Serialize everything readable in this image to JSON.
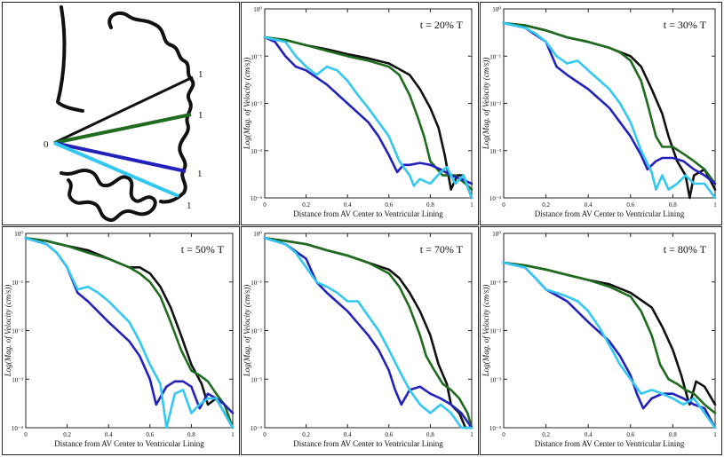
{
  "colors": {
    "black": "#111111",
    "green": "#1f6b1f",
    "blue": "#2222bb",
    "cyan": "#33c8f0"
  },
  "diagram": {
    "center_label": "0",
    "end_labels": [
      "1",
      "1",
      "1",
      "1"
    ]
  },
  "chart_data": [
    {
      "type": "line",
      "title": "t = 20% T",
      "xlabel": "Distance from AV Center to Ventricular Lining",
      "ylabel": "Log(Mag. of Velocity (cm/s))",
      "xlim": [
        0,
        1
      ],
      "ylim": [
        0.0001,
        1
      ],
      "yscale": "log",
      "xticks": [
        "0",
        "0.2",
        "0.4",
        "0.6",
        "0.8",
        "1"
      ],
      "yticks": [
        "10⁰",
        "10⁻¹",
        "10⁻²",
        "10⁻³",
        "10⁻⁴"
      ],
      "series": [
        {
          "color": "#111111",
          "x": [
            0,
            0.1,
            0.2,
            0.3,
            0.4,
            0.5,
            0.6,
            0.7,
            0.75,
            0.8,
            0.84,
            0.87,
            0.9,
            0.93,
            0.96,
            1.0
          ],
          "y": [
            0.25,
            0.22,
            0.17,
            0.14,
            0.11,
            0.09,
            0.07,
            0.04,
            0.02,
            0.008,
            0.003,
            0.0008,
            0.00015,
            0.0003,
            0.0003,
            0.0001
          ]
        },
        {
          "color": "#1f6b1f",
          "x": [
            0,
            0.1,
            0.2,
            0.3,
            0.4,
            0.5,
            0.6,
            0.65,
            0.7,
            0.74,
            0.77,
            0.8,
            0.86,
            0.92,
            0.97,
            1.0
          ],
          "y": [
            0.25,
            0.22,
            0.17,
            0.13,
            0.1,
            0.08,
            0.06,
            0.04,
            0.015,
            0.005,
            0.002,
            0.0006,
            0.0003,
            0.0003,
            0.0002,
            0.00015
          ]
        },
        {
          "color": "#2222bb",
          "x": [
            0,
            0.05,
            0.1,
            0.15,
            0.2,
            0.3,
            0.4,
            0.5,
            0.55,
            0.6,
            0.64,
            0.67,
            0.7,
            0.75,
            0.8,
            0.85,
            0.9,
            0.95,
            1.0
          ],
          "y": [
            0.25,
            0.2,
            0.1,
            0.06,
            0.05,
            0.025,
            0.01,
            0.004,
            0.002,
            0.0008,
            0.00035,
            0.0005,
            0.0005,
            0.00055,
            0.0005,
            0.0004,
            0.0003,
            0.00025,
            0.0002
          ]
        },
        {
          "color": "#33c8f0",
          "x": [
            0,
            0.1,
            0.15,
            0.2,
            0.25,
            0.3,
            0.35,
            0.4,
            0.45,
            0.5,
            0.55,
            0.6,
            0.65,
            0.7,
            0.72,
            0.75,
            0.8,
            0.85,
            0.88,
            0.92,
            0.96,
            1.0
          ],
          "y": [
            0.25,
            0.2,
            0.1,
            0.06,
            0.04,
            0.06,
            0.05,
            0.03,
            0.015,
            0.008,
            0.004,
            0.002,
            0.0006,
            0.0003,
            0.00018,
            0.00025,
            0.0002,
            0.00035,
            0.00045,
            0.0002,
            0.0003,
            0.0001
          ]
        }
      ]
    },
    {
      "type": "line",
      "title": "t = 30% T",
      "xlabel": "Distance from AV Center to Ventricular Lining",
      "ylabel": "Log(Mag. of Velocity (cm/s))",
      "xlim": [
        0,
        1
      ],
      "ylim": [
        0.0001,
        1
      ],
      "yscale": "log",
      "xticks": [
        "0",
        "0.2",
        "0.4",
        "0.6",
        "0.8",
        "1"
      ],
      "yticks": [
        "10⁰",
        "10⁻¹",
        "10⁻²",
        "10⁻³",
        "10⁻⁴"
      ],
      "series": [
        {
          "color": "#111111",
          "x": [
            0,
            0.1,
            0.2,
            0.3,
            0.4,
            0.5,
            0.6,
            0.65,
            0.7,
            0.75,
            0.78,
            0.82,
            0.86,
            0.88,
            0.9,
            0.95,
            1.0
          ],
          "y": [
            0.5,
            0.45,
            0.35,
            0.25,
            0.2,
            0.15,
            0.1,
            0.06,
            0.02,
            0.006,
            0.002,
            0.0006,
            0.0003,
            0.0001,
            0.0003,
            0.0004,
            0.00015
          ]
        },
        {
          "color": "#1f6b1f",
          "x": [
            0,
            0.1,
            0.2,
            0.3,
            0.4,
            0.5,
            0.55,
            0.6,
            0.65,
            0.68,
            0.72,
            0.75,
            0.8,
            0.86,
            0.9,
            0.95,
            1.0
          ],
          "y": [
            0.5,
            0.45,
            0.35,
            0.25,
            0.2,
            0.15,
            0.12,
            0.08,
            0.03,
            0.01,
            0.002,
            0.0012,
            0.0012,
            0.0008,
            0.0006,
            0.0004,
            0.0002
          ]
        },
        {
          "color": "#2222bb",
          "x": [
            0,
            0.1,
            0.2,
            0.25,
            0.3,
            0.4,
            0.5,
            0.55,
            0.6,
            0.65,
            0.68,
            0.72,
            0.75,
            0.8,
            0.85,
            0.9,
            0.95,
            1.0
          ],
          "y": [
            0.5,
            0.4,
            0.2,
            0.06,
            0.04,
            0.02,
            0.008,
            0.004,
            0.002,
            0.0008,
            0.0004,
            0.0006,
            0.0007,
            0.0007,
            0.0006,
            0.0004,
            0.0003,
            0.0002
          ]
        },
        {
          "color": "#33c8f0",
          "x": [
            0,
            0.1,
            0.15,
            0.2,
            0.25,
            0.3,
            0.35,
            0.4,
            0.5,
            0.55,
            0.6,
            0.65,
            0.7,
            0.72,
            0.75,
            0.78,
            0.82,
            0.86,
            0.9,
            0.95,
            1.0
          ],
          "y": [
            0.5,
            0.4,
            0.3,
            0.2,
            0.1,
            0.07,
            0.08,
            0.05,
            0.02,
            0.01,
            0.004,
            0.001,
            0.00035,
            0.00015,
            0.0003,
            0.00015,
            0.0002,
            0.0003,
            0.0002,
            0.0002,
            0.0001
          ]
        }
      ]
    },
    {
      "type": "line",
      "title": "t = 50% T",
      "xlabel": "Distance from AV Center to Ventricular Lining",
      "ylabel": "Log(Mag. of Velocity (cm/s))",
      "xlim": [
        0,
        1
      ],
      "ylim": [
        0.0001,
        1
      ],
      "yscale": "log",
      "xticks": [
        "0",
        "0.2",
        "0.4",
        "0.6",
        "0.8",
        "1"
      ],
      "yticks": [
        "10⁰",
        "10⁻¹",
        "10⁻²",
        "10⁻³",
        "10⁻⁴"
      ],
      "series": [
        {
          "color": "#111111",
          "x": [
            0,
            0.1,
            0.2,
            0.3,
            0.4,
            0.5,
            0.55,
            0.6,
            0.65,
            0.7,
            0.75,
            0.8,
            0.85,
            0.88,
            0.92,
            0.96,
            1.0
          ],
          "y": [
            0.8,
            0.7,
            0.55,
            0.45,
            0.3,
            0.2,
            0.2,
            0.15,
            0.08,
            0.03,
            0.008,
            0.002,
            0.0008,
            0.0003,
            0.0004,
            0.0002,
            0.0001
          ]
        },
        {
          "color": "#1f6b1f",
          "x": [
            0,
            0.1,
            0.2,
            0.3,
            0.4,
            0.5,
            0.55,
            0.6,
            0.65,
            0.7,
            0.75,
            0.8,
            0.84,
            0.88,
            0.92,
            0.96,
            1.0
          ],
          "y": [
            0.8,
            0.7,
            0.55,
            0.4,
            0.3,
            0.2,
            0.15,
            0.1,
            0.05,
            0.015,
            0.004,
            0.0015,
            0.0012,
            0.0009,
            0.0005,
            0.0003,
            0.0001
          ]
        },
        {
          "color": "#2222bb",
          "x": [
            0,
            0.1,
            0.15,
            0.2,
            0.25,
            0.3,
            0.4,
            0.5,
            0.55,
            0.6,
            0.63,
            0.66,
            0.68,
            0.72,
            0.76,
            0.8,
            0.84,
            0.88,
            0.92,
            0.96,
            1.0
          ],
          "y": [
            0.8,
            0.6,
            0.4,
            0.2,
            0.06,
            0.04,
            0.015,
            0.006,
            0.003,
            0.001,
            0.0003,
            0.0005,
            0.0007,
            0.0009,
            0.0009,
            0.0007,
            0.00025,
            0.0005,
            0.0004,
            0.0003,
            0.0002
          ]
        },
        {
          "color": "#33c8f0",
          "x": [
            0,
            0.1,
            0.15,
            0.2,
            0.25,
            0.3,
            0.35,
            0.4,
            0.5,
            0.55,
            0.6,
            0.65,
            0.68,
            0.72,
            0.76,
            0.8,
            0.84,
            0.88,
            0.92,
            0.96,
            1.0
          ],
          "y": [
            0.8,
            0.6,
            0.4,
            0.2,
            0.07,
            0.08,
            0.06,
            0.04,
            0.015,
            0.006,
            0.002,
            0.0008,
            0.0001,
            0.0005,
            0.0006,
            0.0002,
            0.0003,
            0.0004,
            0.0004,
            0.0002,
            0.0001
          ]
        }
      ]
    },
    {
      "type": "line",
      "title": "t = 70% T",
      "xlabel": "Distance from AV Center to Ventricular Lining",
      "ylabel": "Log(Mag. of Velocity (cm/s))",
      "xlim": [
        0,
        1
      ],
      "ylim": [
        0.0001,
        1
      ],
      "yscale": "log",
      "xticks": [
        "0",
        "0.2",
        "0.4",
        "0.6",
        "0.8",
        "1"
      ],
      "yticks": [
        "10⁰",
        "10⁻¹",
        "10⁻²",
        "10⁻³",
        "10⁻⁴"
      ],
      "series": [
        {
          "color": "#111111",
          "x": [
            0,
            0.1,
            0.2,
            0.3,
            0.4,
            0.5,
            0.6,
            0.65,
            0.7,
            0.75,
            0.8,
            0.84,
            0.88,
            0.9,
            0.94,
            0.97,
            1.0
          ],
          "y": [
            0.8,
            0.7,
            0.6,
            0.45,
            0.35,
            0.25,
            0.18,
            0.12,
            0.06,
            0.025,
            0.008,
            0.002,
            0.0008,
            0.0003,
            0.0002,
            0.0001,
            0.0001
          ]
        },
        {
          "color": "#1f6b1f",
          "x": [
            0,
            0.1,
            0.2,
            0.3,
            0.4,
            0.5,
            0.6,
            0.65,
            0.7,
            0.75,
            0.78,
            0.82,
            0.86,
            0.9,
            0.94,
            0.98,
            1.0
          ],
          "y": [
            0.8,
            0.7,
            0.6,
            0.45,
            0.35,
            0.25,
            0.15,
            0.08,
            0.03,
            0.008,
            0.003,
            0.0015,
            0.0008,
            0.0006,
            0.0004,
            0.0002,
            0.0001
          ]
        },
        {
          "color": "#2222bb",
          "x": [
            0,
            0.1,
            0.2,
            0.25,
            0.3,
            0.4,
            0.5,
            0.55,
            0.6,
            0.63,
            0.66,
            0.7,
            0.75,
            0.8,
            0.85,
            0.9,
            0.95,
            1.0
          ],
          "y": [
            0.8,
            0.6,
            0.3,
            0.1,
            0.06,
            0.025,
            0.008,
            0.004,
            0.0015,
            0.0006,
            0.0003,
            0.0006,
            0.0007,
            0.0005,
            0.0004,
            0.0003,
            0.0002,
            0.0001
          ]
        },
        {
          "color": "#33c8f0",
          "x": [
            0,
            0.1,
            0.15,
            0.2,
            0.25,
            0.3,
            0.35,
            0.4,
            0.45,
            0.5,
            0.55,
            0.6,
            0.65,
            0.7,
            0.75,
            0.8,
            0.85,
            0.9,
            0.95,
            1.0
          ],
          "y": [
            0.8,
            0.6,
            0.4,
            0.2,
            0.1,
            0.08,
            0.06,
            0.04,
            0.04,
            0.02,
            0.01,
            0.004,
            0.0015,
            0.0006,
            0.0003,
            0.0002,
            0.0003,
            0.0002,
            0.0001,
            0.0001
          ]
        }
      ]
    },
    {
      "type": "line",
      "title": "t = 80% T",
      "xlabel": "Distance from AV Center to Ventricular Lining",
      "ylabel": "Log(Mag. of Velocity (cm/s))",
      "xlim": [
        0,
        1
      ],
      "ylim": [
        0.0001,
        1
      ],
      "yscale": "log",
      "xticks": [
        "0",
        "0.2",
        "0.4",
        "0.6",
        "0.8",
        "1"
      ],
      "yticks": [
        "10⁰",
        "10⁻¹",
        "10⁻²",
        "10⁻³",
        "10⁻⁴"
      ],
      "series": [
        {
          "color": "#111111",
          "x": [
            0,
            0.1,
            0.2,
            0.3,
            0.4,
            0.5,
            0.6,
            0.7,
            0.75,
            0.8,
            0.84,
            0.87,
            0.88,
            0.91,
            0.95,
            1.0
          ],
          "y": [
            0.25,
            0.22,
            0.18,
            0.14,
            0.11,
            0.09,
            0.06,
            0.03,
            0.012,
            0.004,
            0.0012,
            0.0004,
            0.0003,
            0.0009,
            0.0007,
            0.0003
          ]
        },
        {
          "color": "#1f6b1f",
          "x": [
            0,
            0.1,
            0.2,
            0.3,
            0.4,
            0.5,
            0.6,
            0.65,
            0.7,
            0.74,
            0.78,
            0.82,
            0.86,
            0.9,
            0.95,
            1.0
          ],
          "y": [
            0.25,
            0.22,
            0.18,
            0.14,
            0.11,
            0.08,
            0.05,
            0.025,
            0.008,
            0.002,
            0.001,
            0.0008,
            0.0006,
            0.0005,
            0.0003,
            0.0002
          ]
        },
        {
          "color": "#2222bb",
          "x": [
            0,
            0.1,
            0.15,
            0.2,
            0.3,
            0.4,
            0.5,
            0.55,
            0.6,
            0.63,
            0.66,
            0.7,
            0.75,
            0.8,
            0.85,
            0.9,
            0.95,
            1.0
          ],
          "y": [
            0.25,
            0.2,
            0.12,
            0.07,
            0.04,
            0.015,
            0.006,
            0.003,
            0.0012,
            0.0005,
            0.00025,
            0.0004,
            0.0005,
            0.0005,
            0.0004,
            0.0003,
            0.00025,
            0.0001
          ]
        },
        {
          "color": "#33c8f0",
          "x": [
            0,
            0.1,
            0.15,
            0.2,
            0.25,
            0.3,
            0.35,
            0.4,
            0.45,
            0.5,
            0.55,
            0.6,
            0.65,
            0.7,
            0.75,
            0.8,
            0.85,
            0.9,
            0.95,
            1.0
          ],
          "y": [
            0.25,
            0.2,
            0.12,
            0.07,
            0.06,
            0.05,
            0.04,
            0.025,
            0.012,
            0.005,
            0.002,
            0.001,
            0.0005,
            0.0006,
            0.0005,
            0.0004,
            0.0003,
            0.0004,
            0.0002,
            0.0001
          ]
        }
      ]
    }
  ]
}
